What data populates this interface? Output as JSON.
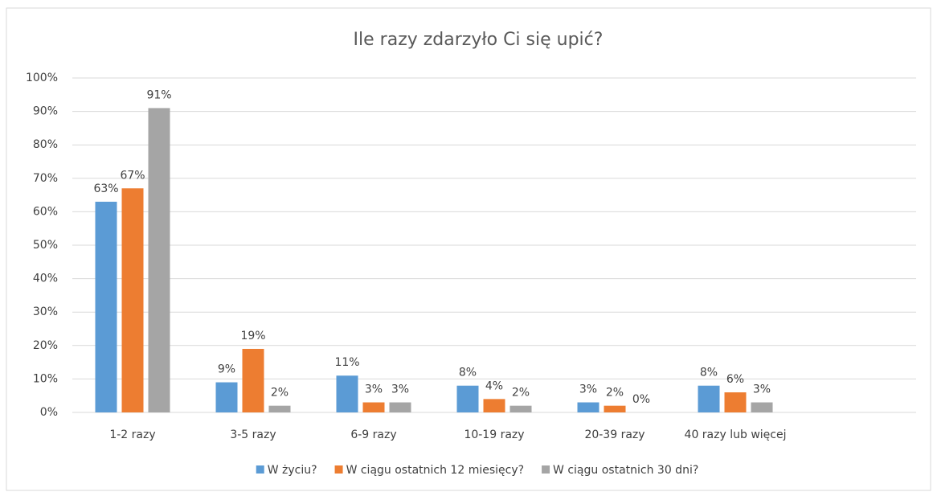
{
  "chart_data": {
    "type": "bar",
    "title": "Ile razy zdarzyło Ci się upić?",
    "categories": [
      "1-2 razy",
      "3-5 razy",
      "6-9 razy",
      "10-19 razy",
      "20-39 razy",
      "40 razy lub więcej",
      null
    ],
    "series": [
      {
        "name": "W życiu?",
        "color": "#5b9bd5",
        "values": [
          63,
          9,
          11,
          8,
          3,
          8,
          null
        ],
        "value_labels": [
          "63%",
          "9%",
          "11%",
          "8%",
          "3%",
          "8%",
          null
        ]
      },
      {
        "name": "W ciągu ostatnich 12 miesięcy?",
        "color": "#ed7d31",
        "values": [
          67,
          19,
          3,
          4,
          2,
          6,
          null
        ],
        "value_labels": [
          "67%",
          "19%",
          "3%",
          "4%",
          "2%",
          "6%",
          null
        ]
      },
      {
        "name": "W ciągu ostatnich 30 dni?",
        "color": "#a5a5a5",
        "values": [
          91,
          2,
          3,
          2,
          0,
          3,
          null
        ],
        "value_labels": [
          "91%",
          "2%",
          "3%",
          "2%",
          "0%",
          "3%",
          null
        ]
      }
    ],
    "ylim": [
      0,
      100
    ],
    "yticks": [
      {
        "value": 0,
        "label": "0%"
      },
      {
        "value": 10,
        "label": "10%"
      },
      {
        "value": 20,
        "label": "20%"
      },
      {
        "value": 30,
        "label": "30%"
      },
      {
        "value": 40,
        "label": "40%"
      },
      {
        "value": 50,
        "label": "50%"
      },
      {
        "value": 60,
        "label": "60%"
      },
      {
        "value": 70,
        "label": "70%"
      },
      {
        "value": 80,
        "label": "80%"
      },
      {
        "value": 90,
        "label": "90%"
      },
      {
        "value": 100,
        "label": "100%"
      }
    ],
    "grid": true,
    "legend": "bottom"
  }
}
